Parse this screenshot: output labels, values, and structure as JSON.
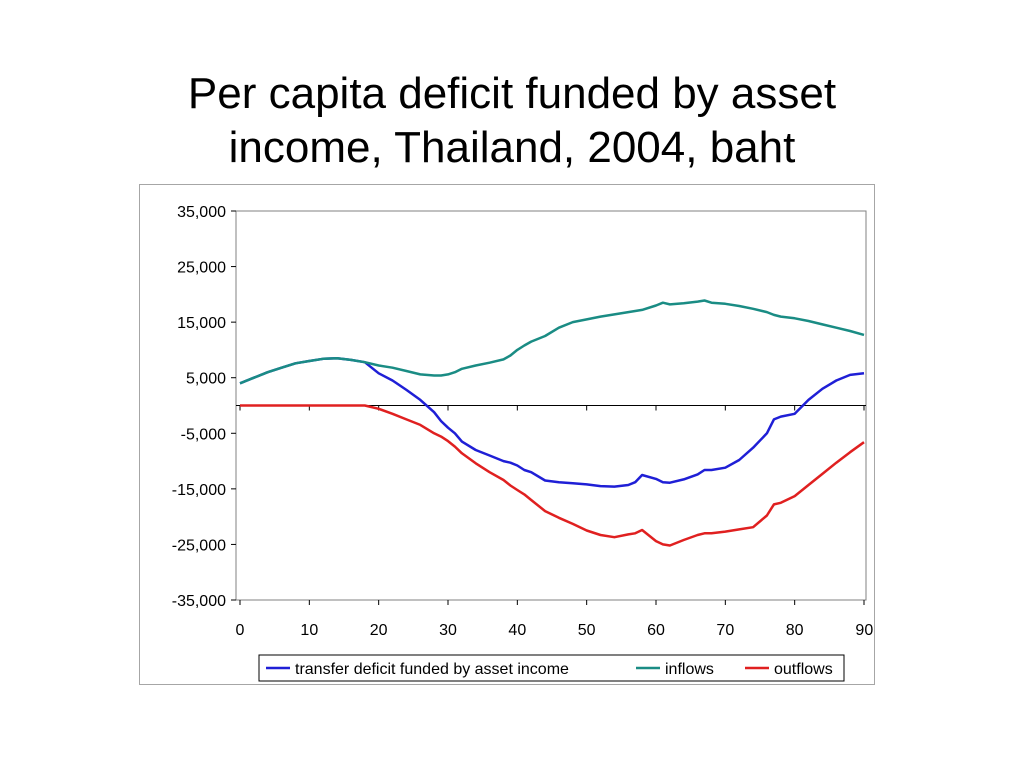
{
  "title": {
    "line1": "Per capita deficit funded by asset",
    "line2": "income, Thailand, 2004, baht"
  },
  "chart_data": {
    "type": "line",
    "title": "Per capita deficit funded by asset income, Thailand, 2004, baht",
    "xlabel": "",
    "ylabel": "",
    "xlim": [
      0,
      90
    ],
    "ylim": [
      -35000,
      35000
    ],
    "x_ticks": [
      0,
      10,
      20,
      30,
      40,
      50,
      60,
      70,
      80,
      90
    ],
    "x_tick_labels": [
      "0",
      "10",
      "20",
      "30",
      "40",
      "50",
      "60",
      "70",
      "80",
      "90+"
    ],
    "y_ticks": [
      35000,
      25000,
      15000,
      5000,
      -5000,
      -15000,
      -25000,
      -35000
    ],
    "y_tick_labels": [
      "35,000",
      "25,000",
      "15,000",
      "5,000",
      "-5,000",
      "-15,000",
      "-25,000",
      "-35,000"
    ],
    "grid": "horizontal lines off, zero line shown",
    "legend_position": "bottom",
    "x": [
      0,
      2,
      4,
      6,
      8,
      10,
      12,
      14,
      16,
      18,
      20,
      22,
      24,
      26,
      28,
      29,
      30,
      31,
      32,
      34,
      36,
      38,
      39,
      40,
      41,
      42,
      44,
      46,
      48,
      50,
      52,
      54,
      56,
      57,
      58,
      60,
      61,
      62,
      64,
      66,
      67,
      68,
      70,
      72,
      74,
      76,
      77,
      78,
      80,
      82,
      84,
      86,
      88,
      90
    ],
    "series": [
      {
        "name": "transfer deficit funded by asset income",
        "color": "#1f1fd6",
        "values": [
          4000,
          5000,
          6000,
          6800,
          7600,
          8000,
          8400,
          8500,
          8200,
          7800,
          5800,
          4500,
          2800,
          1000,
          -1200,
          -2800,
          -4000,
          -5000,
          -6500,
          -8000,
          -9000,
          -10000,
          -10300,
          -10800,
          -11600,
          -12000,
          -13500,
          -13800,
          -14000,
          -14200,
          -14500,
          -14600,
          -14300,
          -13800,
          -12500,
          -13200,
          -13800,
          -13900,
          -13300,
          -12400,
          -11600,
          -11600,
          -11200,
          -9800,
          -7600,
          -5000,
          -2500,
          -2000,
          -1500,
          1000,
          3000,
          4500,
          5500,
          5800
        ]
      },
      {
        "name": "inflows",
        "color": "#1a8c84",
        "values": [
          4000,
          5000,
          6000,
          6800,
          7600,
          8000,
          8400,
          8500,
          8200,
          7800,
          7200,
          6800,
          6200,
          5600,
          5400,
          5400,
          5600,
          6000,
          6600,
          7200,
          7700,
          8300,
          9000,
          10000,
          10800,
          11500,
          12500,
          14000,
          15000,
          15500,
          16000,
          16400,
          16800,
          17000,
          17200,
          18000,
          18500,
          18200,
          18400,
          18700,
          18900,
          18500,
          18300,
          17900,
          17400,
          16800,
          16300,
          16000,
          15700,
          15200,
          14600,
          14000,
          13400,
          12700
        ]
      },
      {
        "name": "outflows",
        "color": "#e02020",
        "values": [
          0,
          0,
          0,
          0,
          0,
          0,
          0,
          0,
          0,
          0,
          -600,
          -1500,
          -2500,
          -3500,
          -5000,
          -5600,
          -6400,
          -7400,
          -8600,
          -10400,
          -12000,
          -13400,
          -14400,
          -15200,
          -16000,
          -17000,
          -19000,
          -20200,
          -21300,
          -22500,
          -23300,
          -23700,
          -23200,
          -23000,
          -22400,
          -24400,
          -25000,
          -25200,
          -24200,
          -23300,
          -23000,
          -23000,
          -22700,
          -22300,
          -21900,
          -19800,
          -17800,
          -17500,
          -16300,
          -14300,
          -12300,
          -10300,
          -8400,
          -6600
        ]
      }
    ]
  }
}
